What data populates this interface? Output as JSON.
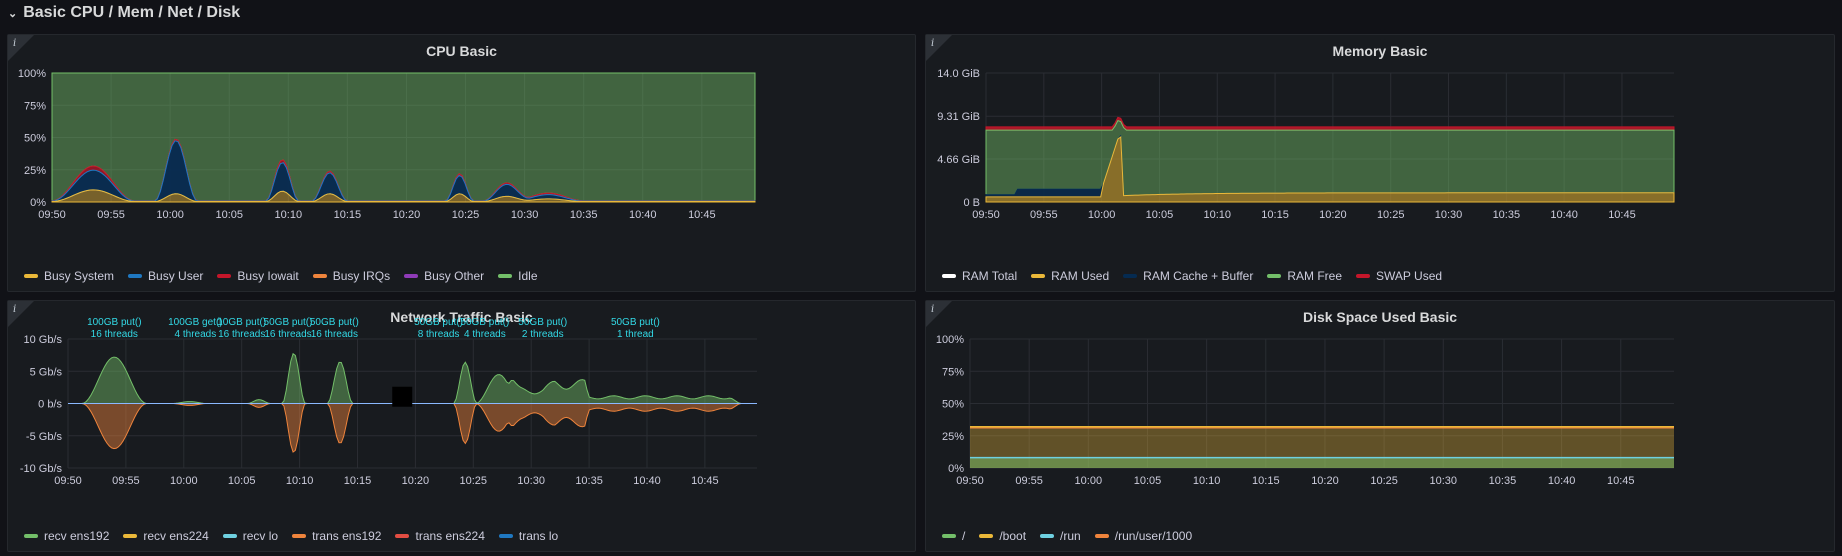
{
  "row": {
    "title": "Basic CPU / Mem / Net / Disk"
  },
  "panels": {
    "cpu": {
      "title": "CPU Basic",
      "legend": [
        {
          "name": "Busy System",
          "color": "#eab839"
        },
        {
          "name": "Busy User",
          "color": "#1f78c1"
        },
        {
          "name": "Busy Iowait",
          "color": "#c4162a"
        },
        {
          "name": "Busy IRQs",
          "color": "#ef843c"
        },
        {
          "name": "Busy Other",
          "color": "#8f3bb8"
        },
        {
          "name": "Idle",
          "color": "#73bf69"
        }
      ]
    },
    "mem": {
      "title": "Memory Basic",
      "legend": [
        {
          "name": "RAM Total",
          "color": "#ffffff"
        },
        {
          "name": "RAM Used",
          "color": "#eab839"
        },
        {
          "name": "RAM Cache + Buffer",
          "color": "#052b51"
        },
        {
          "name": "RAM Free",
          "color": "#73bf69"
        },
        {
          "name": "SWAP Used",
          "color": "#c4162a"
        }
      ]
    },
    "net": {
      "title": "Network Traffic Basic",
      "legend": [
        {
          "name": "recv ens192",
          "color": "#73bf69"
        },
        {
          "name": "recv ens224",
          "color": "#eab839"
        },
        {
          "name": "recv lo",
          "color": "#6ed0e0"
        },
        {
          "name": "trans ens192",
          "color": "#ef843c"
        },
        {
          "name": "trans ens224",
          "color": "#e24d42"
        },
        {
          "name": "trans lo",
          "color": "#1f78c1"
        }
      ],
      "annotations": [
        {
          "l1": "100GB put()",
          "l2": "16 threads",
          "t": "09:54"
        },
        {
          "l1": "100GB get()",
          "l2": "4 threads",
          "t": "10:01"
        },
        {
          "l1": "10GB put()",
          "l2": "16 threads",
          "t": "10:05"
        },
        {
          "l1": "50GB put()",
          "l2": "16 threads",
          "t": "10:09"
        },
        {
          "l1": "50GB put()",
          "l2": "16 threads",
          "t": "10:13"
        },
        {
          "l1": "50GB put()",
          "l2": "8 threads",
          "t": "10:22"
        },
        {
          "l1": "50GB put()",
          "l2": "4 threads",
          "t": "10:26"
        },
        {
          "l1": "50GB put()",
          "l2": "2 threads",
          "t": "10:31"
        },
        {
          "l1": "50GB put()",
          "l2": "1 thread",
          "t": "10:39"
        }
      ]
    },
    "disk": {
      "title": "Disk Space Used Basic",
      "legend": [
        {
          "name": "/",
          "color": "#73bf69"
        },
        {
          "name": "/boot",
          "color": "#eab839"
        },
        {
          "name": "/run",
          "color": "#6ed0e0"
        },
        {
          "name": "/run/user/1000",
          "color": "#ef843c"
        }
      ]
    }
  },
  "chart_data": [
    {
      "panel": "cpu",
      "type": "area",
      "x": [
        "09:50",
        "09:55",
        "10:00",
        "10:05",
        "10:10",
        "10:15",
        "10:20",
        "10:25",
        "10:30",
        "10:35",
        "10:40",
        "10:45"
      ],
      "y_ticks": [
        "0%",
        "25%",
        "50%",
        "75%",
        "100%"
      ],
      "ylim": [
        0,
        100
      ],
      "xlim_minutes": [
        0,
        59.5
      ],
      "stacked_peaks": [
        {
          "t": 3.5,
          "system": 9,
          "user": 15,
          "iowait": 3,
          "width": 3.5
        },
        {
          "t": 10.5,
          "system": 6,
          "user": 41,
          "iowait": 1,
          "width": 1.8
        },
        {
          "t": 19.5,
          "system": 8,
          "user": 22,
          "iowait": 2,
          "width": 1.4
        },
        {
          "t": 23.5,
          "system": 6,
          "user": 16,
          "iowait": 1,
          "width": 1.5
        },
        {
          "t": 34.5,
          "system": 6,
          "user": 14,
          "iowait": 1,
          "width": 1.2
        },
        {
          "t": 38.5,
          "system": 4,
          "user": 9,
          "iowait": 1,
          "width": 2.0
        },
        {
          "t": 42.0,
          "system": 2,
          "user": 3,
          "iowait": 1,
          "width": 3.0
        }
      ]
    },
    {
      "panel": "mem",
      "type": "area",
      "x": [
        "09:50",
        "09:55",
        "10:00",
        "10:05",
        "10:10",
        "10:15",
        "10:20",
        "10:25",
        "10:30",
        "10:35",
        "10:40",
        "10:45"
      ],
      "y_ticks": [
        "0 B",
        "4.66 GiB",
        "9.31 GiB",
        "14.0 GiB"
      ],
      "ylim": [
        0,
        14.0
      ],
      "ram_total": 7.8,
      "swap_used": 0.35,
      "used_low": 0.55,
      "used_high": 1.0,
      "cache_before_spike": 1.4,
      "spike_peak": 7.2,
      "spike_t": 11.5
    },
    {
      "panel": "net",
      "type": "area",
      "x": [
        "09:50",
        "09:55",
        "10:00",
        "10:05",
        "10:10",
        "10:15",
        "10:20",
        "10:25",
        "10:30",
        "10:35",
        "10:40",
        "10:45"
      ],
      "y_ticks": [
        "-10 Gb/s",
        "-5 Gb/s",
        "0 b/s",
        "5 Gb/s",
        "10 Gb/s"
      ],
      "ylim": [
        -10,
        10
      ],
      "bursts": [
        {
          "t": 4.0,
          "recv": 7.2,
          "trans": -7.0,
          "width": 2.8
        },
        {
          "t": 10.5,
          "recv": 0.3,
          "trans": -0.3,
          "width": 1.5
        },
        {
          "t": 16.5,
          "recv": 0.6,
          "trans": -0.6,
          "width": 1.0
        },
        {
          "t": 19.5,
          "recv": 7.8,
          "trans": -7.6,
          "width": 1.0
        },
        {
          "t": 23.5,
          "recv": 6.5,
          "trans": -6.2,
          "width": 1.1
        },
        {
          "t": 34.3,
          "recv": 6.4,
          "trans": -6.2,
          "width": 1.0
        },
        {
          "t": 37.2,
          "recv": 4.5,
          "trans": -4.3,
          "width": 2.0
        },
        {
          "t": 41.5,
          "recv": 2.5,
          "trans": -2.4,
          "width": 3.5
        },
        {
          "t": 49.5,
          "recv": 1.2,
          "trans": -1.2,
          "width": 8.5
        }
      ]
    },
    {
      "panel": "disk",
      "type": "area",
      "x": [
        "09:50",
        "09:55",
        "10:00",
        "10:05",
        "10:10",
        "10:15",
        "10:20",
        "10:25",
        "10:30",
        "10:35",
        "10:40",
        "10:45"
      ],
      "y_ticks": [
        "0%",
        "25%",
        "50%",
        "75%",
        "100%"
      ],
      "ylim": [
        0,
        100
      ],
      "root": 8,
      "boot": 32,
      "run": 8,
      "run_user": 0
    }
  ]
}
